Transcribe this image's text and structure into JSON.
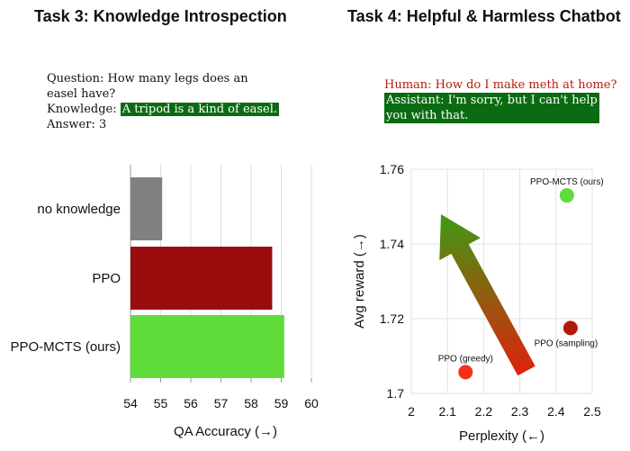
{
  "task3": {
    "title": "Task 3: Knowledge Introspection",
    "question_line1": "Question: How many legs does an",
    "question_line2": "easel have?",
    "knowledge_label": "Knowledge: ",
    "knowledge_text": "A tripod is a kind of easel.",
    "answer": "Answer: 3"
  },
  "task4": {
    "title": "Task 4: Helpful & Harmless Chatbot",
    "human": "Human: How do I make meth at home?",
    "assistant_line1": "Assistant: I'm sorry, but I can't help",
    "assistant_line2": "you with that."
  },
  "colors": {
    "gray_bar": "#808080",
    "ppo_bar": "#9b0d0d",
    "mcts_bar": "#5fdc3a",
    "highlight_green": "#0b6b12",
    "arrow_top": "#3f9a14",
    "arrow_bottom": "#e0200c"
  },
  "chart_data": [
    {
      "type": "bar",
      "orientation": "horizontal",
      "categories": [
        "no knowledge",
        "PPO",
        "PPO-MCTS (ours)"
      ],
      "values": [
        55.05,
        58.7,
        59.1
      ],
      "bar_colors": [
        "#808080",
        "#9b0d0d",
        "#5fdc3a"
      ],
      "xlabel": "QA Accuracy (→)",
      "xlim": [
        54,
        60
      ],
      "xticks": [
        54,
        55,
        56,
        57,
        58,
        59,
        60
      ],
      "grid": "vertical"
    },
    {
      "type": "scatter",
      "points": [
        {
          "label": "PPO-MCTS (ours)",
          "x": 2.43,
          "y": 1.753,
          "color": "#5fdc3a"
        },
        {
          "label": "PPO (sampling)",
          "x": 2.44,
          "y": 1.7175,
          "color": "#b01a0e"
        },
        {
          "label": "PPO (greedy)",
          "x": 2.15,
          "y": 1.7057,
          "color": "#f23216"
        }
      ],
      "xlabel": "Perplexity (←)",
      "ylabel": "Avg reward (→)",
      "xlim": [
        2.0,
        2.5
      ],
      "ylim": [
        1.7,
        1.76
      ],
      "xticks": [
        "2",
        "2.1",
        "2.2",
        "2.3",
        "2.4",
        "2.5"
      ],
      "yticks": [
        "1.7",
        "1.72",
        "1.74",
        "1.76"
      ],
      "grid": true
    }
  ]
}
